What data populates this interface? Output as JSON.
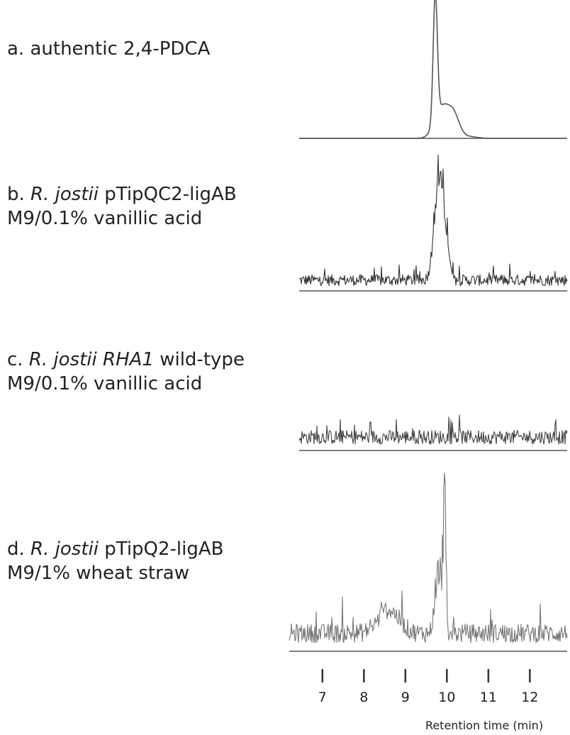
{
  "chart_data": {
    "type": "line",
    "xlabel": "Retention time (min)",
    "x_ticks": [
      7,
      8,
      9,
      10,
      11,
      12
    ],
    "xlim": [
      6.2,
      12.9
    ],
    "traces": [
      {
        "id": "a",
        "label_prefix": "a. authentic 2,4-PDCA",
        "label_italic": "",
        "label_suffix": "",
        "label_line2": "",
        "color": "#555555",
        "noise": 0.0,
        "peaks": [
          {
            "x": 9.72,
            "height": 1.0,
            "width": 0.05
          },
          {
            "x": 9.9,
            "height": 0.25,
            "width": 0.18
          },
          {
            "x": 10.18,
            "height": 0.14,
            "width": 0.13
          },
          {
            "x": 10.5,
            "height": 0.015,
            "width": 0.2
          }
        ]
      },
      {
        "id": "b",
        "label_prefix": "b. ",
        "label_italic": "R. jostii",
        "label_suffix": " pTipQC2-ligAB",
        "label_line2": "M9/0.1% vanillic acid",
        "color": "#333333",
        "noise": 0.16,
        "peaks": [
          {
            "x": 9.78,
            "height": 0.75,
            "width": 0.1
          },
          {
            "x": 9.95,
            "height": 0.45,
            "width": 0.08
          }
        ]
      },
      {
        "id": "c",
        "label_prefix": "c. ",
        "label_italic": "R. jostii RHA1",
        "label_suffix": " wild-type",
        "label_line2": "M9/0.1% vanillic acid",
        "color": "#444444",
        "noise": 0.2,
        "peaks": []
      },
      {
        "id": "d",
        "label_prefix": "d. ",
        "label_italic": "R. jostii",
        "label_suffix": " pTipQ2-ligAB",
        "label_line2": "M9/1% wheat straw",
        "color": "#777777",
        "noise": 0.22,
        "peaks": [
          {
            "x": 9.8,
            "height": 0.45,
            "width": 0.08
          },
          {
            "x": 9.95,
            "height": 0.95,
            "width": 0.03
          },
          {
            "x": 8.6,
            "height": 0.15,
            "width": 0.25
          }
        ]
      }
    ]
  }
}
